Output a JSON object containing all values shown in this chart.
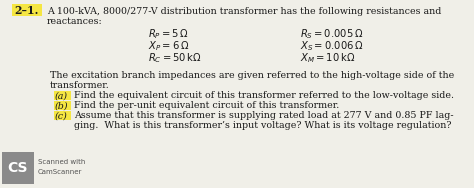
{
  "bg_color": "#f0efe8",
  "problem_number": "2–1.",
  "highlight_color": "#f5e642",
  "title_line1": "A 100-kVA, 8000/277-V distribution transformer has the following resistances and",
  "title_line2": "reactances:",
  "eq_left": [
    "$R_P = 5\\,\\Omega$",
    "$X_P = 6\\,\\Omega$",
    "$R_C = 50\\,\\mathrm{k}\\Omega$"
  ],
  "eq_right": [
    "$R_S = 0.005\\,\\Omega$",
    "$X_S = 0.006\\,\\Omega$",
    "$X_M = 10\\,\\mathrm{k}\\Omega$"
  ],
  "body_line1": "The excitation branch impedances are given referred to the high-voltage side of the",
  "body_line2": "transformer.",
  "item_a_label": "(a)",
  "item_a_text": "Find the equivalent circuit of this transformer referred to the low-voltage side.",
  "item_b_label": "(b)",
  "item_b_text": "Find the per-unit equivalent circuit of this transformer.",
  "item_c_label": "(c)",
  "item_c_text": "Assume that this transformer is supplying rated load at 277 V and 0.85 PF lag-",
  "item_c_line2": "ging.  What is this transformer’s input voltage? What is its voltage regulation?",
  "cs_logo_text": "CS",
  "cs_label_line1": "Scanned with",
  "cs_label_line2": "CamScanner",
  "text_color": "#1a1a1a",
  "cs_bg_color": "#8a8a8a",
  "font_size_main": 6.8,
  "font_size_eq": 7.2,
  "font_size_num": 7.8,
  "font_size_cs": 5.0
}
